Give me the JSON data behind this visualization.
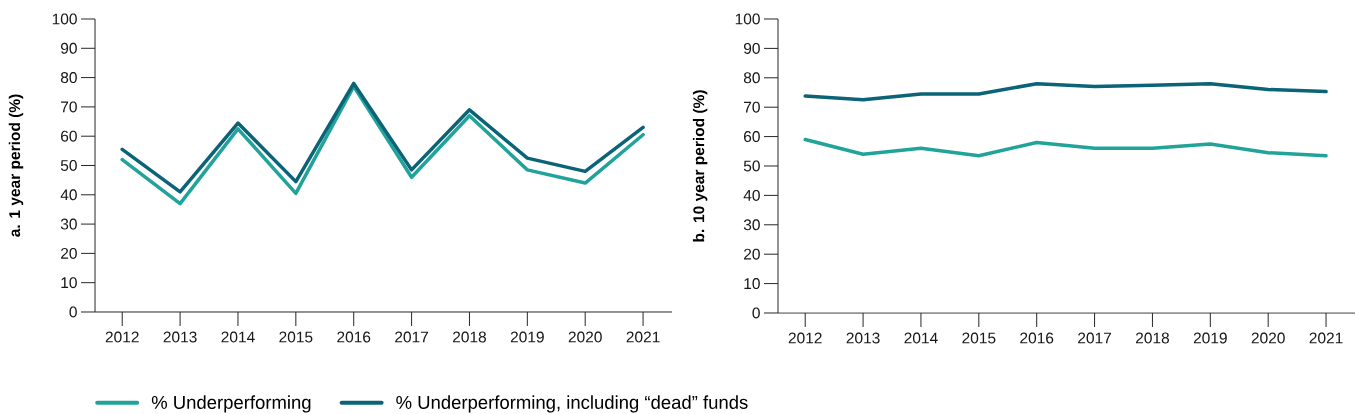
{
  "chart_data": [
    {
      "type": "line",
      "ylabel": "a. 1 year period (%)",
      "categories": [
        "2012",
        "2013",
        "2014",
        "2015",
        "2016",
        "2017",
        "2018",
        "2019",
        "2020",
        "2021"
      ],
      "ylim": [
        0,
        100
      ],
      "yticks": [
        0,
        10,
        20,
        30,
        40,
        50,
        60,
        70,
        80,
        90,
        100
      ],
      "marker": "none",
      "line_style": "solid",
      "legend": "bottom",
      "series": [
        {
          "name": "% Underperforming",
          "color": "#21a39a",
          "values": [
            52,
            37,
            62.5,
            40.5,
            77,
            46,
            67,
            48.5,
            44,
            60.5
          ]
        },
        {
          "name": "% Underperforming, including “dead” funds",
          "color": "#0a6377",
          "values": [
            55.5,
            41,
            64.5,
            44.5,
            78,
            48.5,
            69,
            52.5,
            48,
            63
          ]
        }
      ]
    },
    {
      "type": "line",
      "ylabel": "b. 10 year period (%)",
      "categories": [
        "2012",
        "2013",
        "2014",
        "2015",
        "2016",
        "2017",
        "2018",
        "2019",
        "2020",
        "2021"
      ],
      "ylim": [
        0,
        100
      ],
      "yticks": [
        0,
        10,
        20,
        30,
        40,
        50,
        60,
        70,
        80,
        90,
        100
      ],
      "marker": "none",
      "line_style": "solid",
      "series": [
        {
          "color": "#21a39a",
          "values": [
            59,
            54,
            56,
            53.5,
            58,
            56,
            56,
            57.5,
            54.5,
            53.5
          ]
        },
        {
          "color": "#0a6377",
          "values": [
            73.8,
            72.5,
            74.5,
            74.5,
            78,
            77,
            77.5,
            78,
            76,
            75.3
          ]
        }
      ]
    }
  ]
}
